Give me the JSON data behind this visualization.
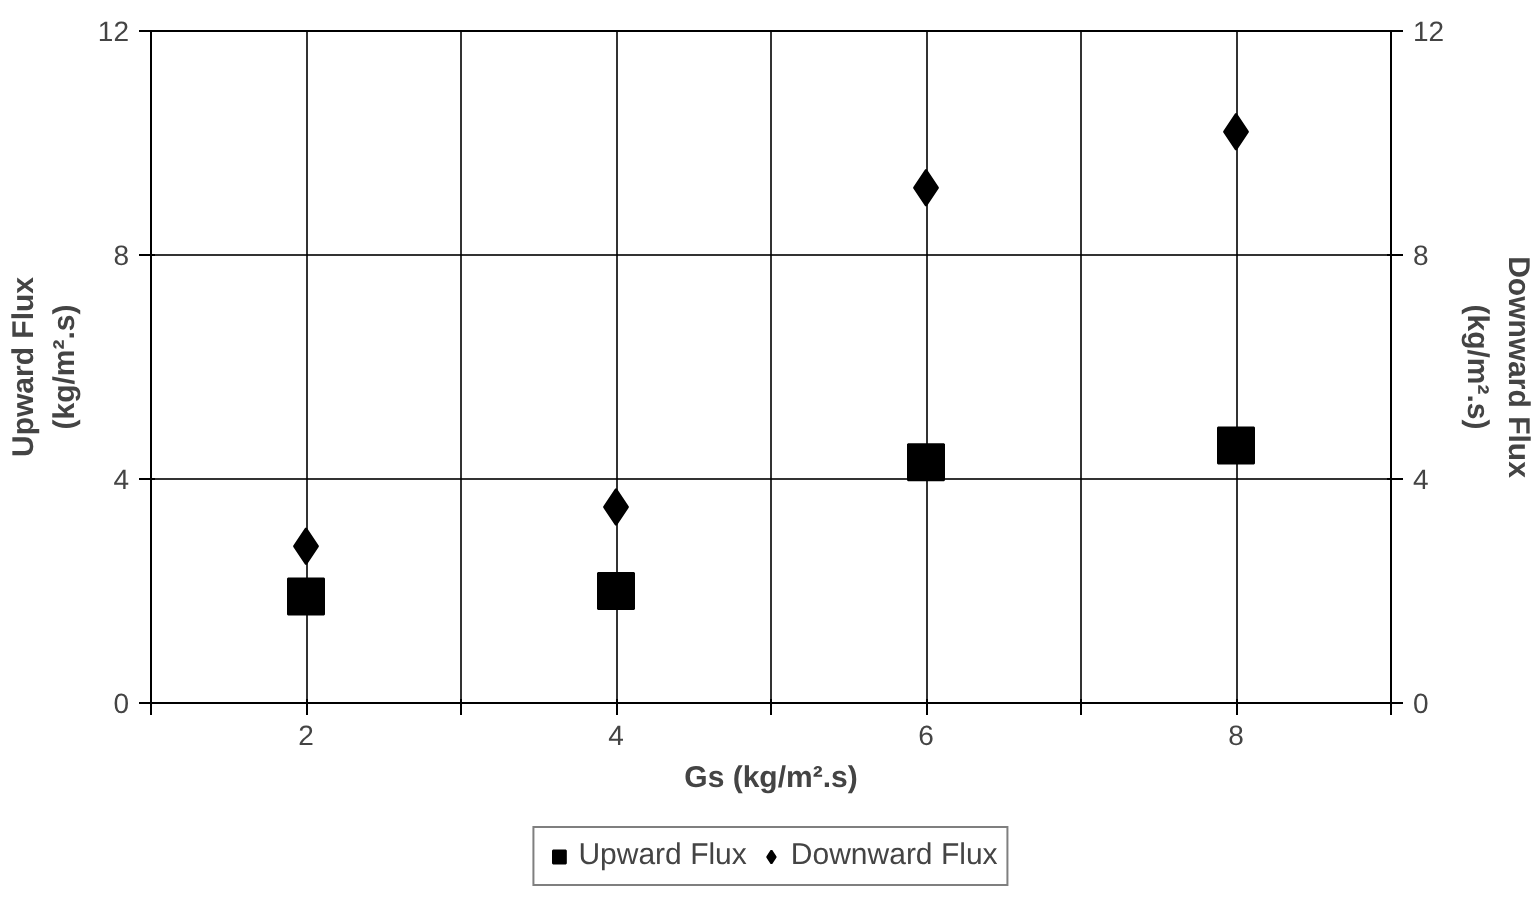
{
  "chart_data": {
    "type": "scatter",
    "xlabel": "Gs (kg/m².s)",
    "ylabel": "Upward Flux\n(kg/m².s)",
    "y2label": "Downward Flux\n(kg/m².s)",
    "x": [
      2,
      4,
      6,
      8
    ],
    "series": [
      {
        "name": "Upward Flux",
        "color": "#000000",
        "marker": "square",
        "values": [
          1.9,
          2.0,
          4.3,
          4.6
        ]
      },
      {
        "name": "Downward Flux",
        "color": "#000000",
        "marker": "diamond",
        "values": [
          2.8,
          3.5,
          9.2,
          10.2
        ]
      }
    ],
    "xlim": [
      1,
      9
    ],
    "xticks": [
      {
        "value": 1,
        "label": null
      },
      2,
      {
        "value": 3,
        "label": null
      },
      4,
      {
        "value": 5,
        "label": null
      },
      6,
      {
        "value": 7,
        "label": null
      },
      8,
      {
        "value": 9,
        "label": null
      }
    ],
    "ylim": [
      0,
      12
    ],
    "yticks": [
      0,
      4,
      8,
      12
    ],
    "y2lim": [
      0,
      12
    ],
    "y2ticks": [
      0,
      4,
      8,
      12
    ],
    "grid": true,
    "legend": "bottom"
  }
}
